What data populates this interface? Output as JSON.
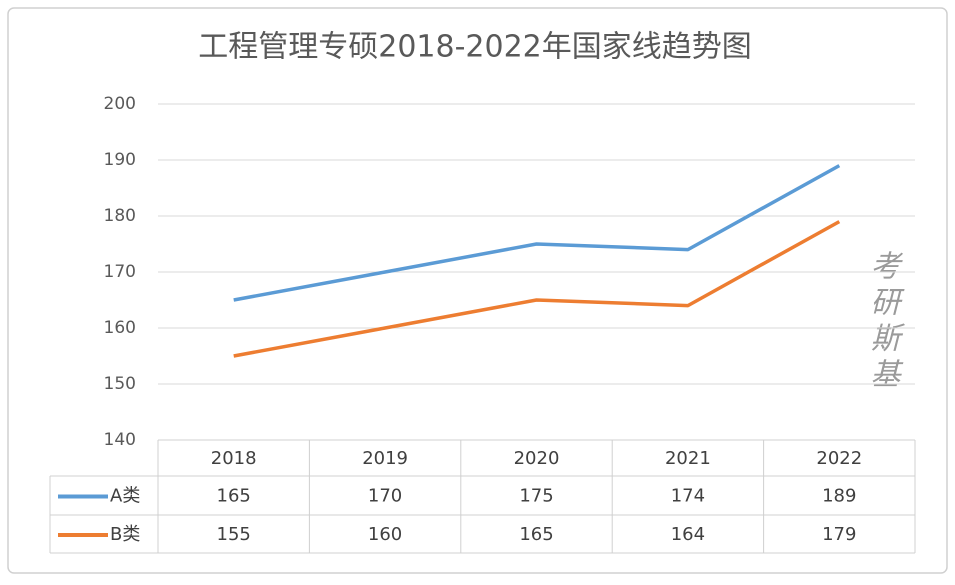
{
  "chart_data": {
    "type": "line",
    "title": "工程管理专硕2018-2022年国家线趋势图",
    "categories": [
      "2018",
      "2019",
      "2020",
      "2021",
      "2022"
    ],
    "series": [
      {
        "name": "A类",
        "color": "#5b9bd5",
        "values": [
          165,
          170,
          175,
          174,
          189
        ]
      },
      {
        "name": "B类",
        "color": "#ed7d31",
        "values": [
          155,
          160,
          165,
          164,
          179
        ]
      }
    ],
    "ylim": [
      140,
      200
    ],
    "yticks": [
      140,
      150,
      160,
      170,
      180,
      190,
      200
    ],
    "grid": true,
    "data_table": true,
    "watermark": "考研斯基"
  }
}
